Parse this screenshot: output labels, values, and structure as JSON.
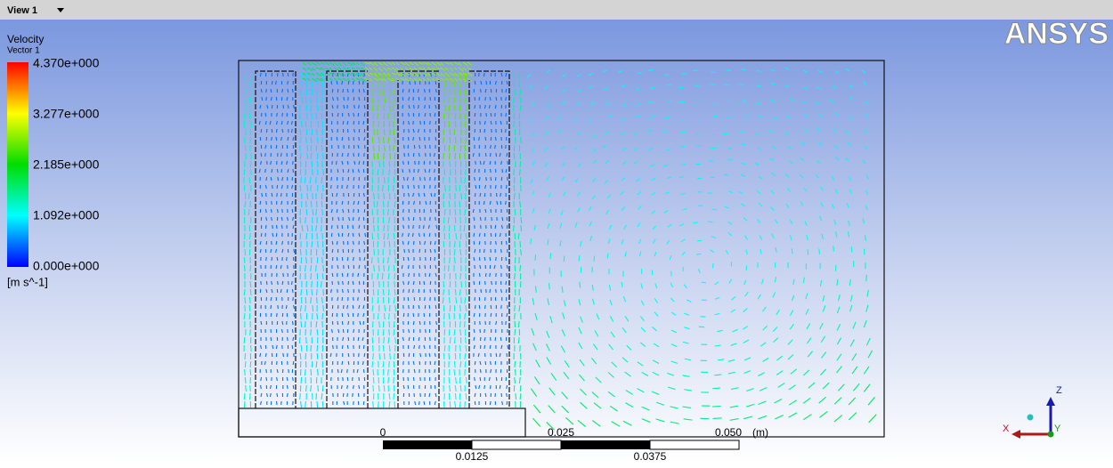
{
  "toolbar": {
    "view": "View 1"
  },
  "legend": {
    "title": "Velocity",
    "subtitle": "Vector 1",
    "labels": [
      "4.370e+000",
      "3.277e+000",
      "2.185e+000",
      "1.092e+000",
      "0.000e+000"
    ],
    "unit": "[m s^-1]"
  },
  "logo": "ANSYS",
  "scale": {
    "top_labels": [
      "0",
      "0.025",
      "0.050"
    ],
    "unit": "(m)",
    "bottom_labels": [
      "0.0125",
      "0.0375"
    ]
  },
  "triad": {
    "z": "Z",
    "x": "X",
    "y": "Y"
  }
}
